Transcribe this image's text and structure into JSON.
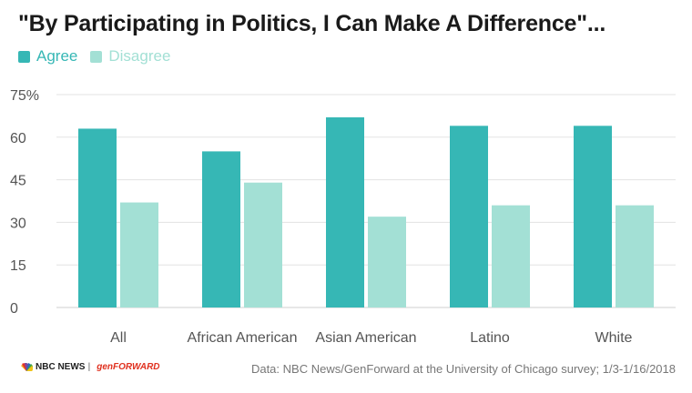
{
  "title": "\"By Participating in Politics, I Can Make A Difference\"...",
  "legend": {
    "agree": "Agree",
    "disagree": "Disagree"
  },
  "colors": {
    "agree": "#36b7b5",
    "disagree": "#a3e0d5",
    "grid": "#e3e3e3",
    "text": "#555555"
  },
  "footer": {
    "logo_text": "NBC NEWS",
    "separator": "|",
    "partner_logo": "genFORWARD",
    "source": "Data: NBC News/GenForward at the University of Chicago survey; 1/3-1/16/2018"
  },
  "chart_data": {
    "type": "bar",
    "categories": [
      "All",
      "African American",
      "Asian American",
      "Latino",
      "White"
    ],
    "series": [
      {
        "name": "Agree",
        "values": [
          63,
          55,
          67,
          64,
          64
        ]
      },
      {
        "name": "Disagree",
        "values": [
          37,
          44,
          32,
          36,
          36
        ]
      }
    ],
    "yticks": [
      "0",
      "15",
      "30",
      "45",
      "60",
      "75%"
    ],
    "ylim": [
      0,
      75
    ],
    "grid": true,
    "legend_position": "top-left"
  }
}
